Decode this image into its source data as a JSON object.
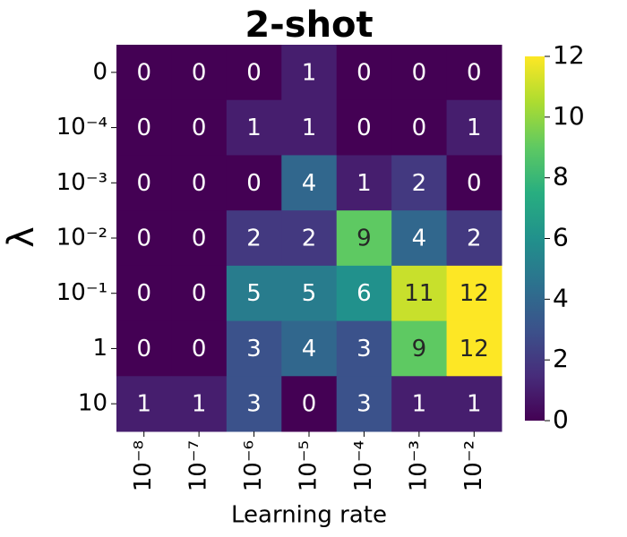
{
  "chart_data": {
    "type": "heatmap",
    "title": "2-shot",
    "xlabel": "Learning rate",
    "ylabel": "λ",
    "x_categories": [
      "10⁻⁸",
      "10⁻⁷",
      "10⁻⁶",
      "10⁻⁵",
      "10⁻⁴",
      "10⁻³",
      "10⁻²"
    ],
    "y_categories": [
      "0",
      "10⁻⁴",
      "10⁻³",
      "10⁻²",
      "10⁻¹",
      "1",
      "10"
    ],
    "values": [
      [
        0,
        0,
        0,
        1,
        0,
        0,
        0
      ],
      [
        0,
        0,
        1,
        1,
        0,
        0,
        1
      ],
      [
        0,
        0,
        0,
        4,
        1,
        2,
        0
      ],
      [
        0,
        0,
        2,
        2,
        9,
        4,
        2
      ],
      [
        0,
        0,
        5,
        5,
        6,
        11,
        12
      ],
      [
        0,
        0,
        3,
        4,
        3,
        9,
        12
      ],
      [
        1,
        1,
        3,
        0,
        3,
        1,
        1
      ]
    ],
    "colormap": "viridis",
    "clim": [
      0,
      12
    ],
    "cticks": [
      0,
      2,
      4,
      6,
      8,
      10,
      12
    ]
  }
}
